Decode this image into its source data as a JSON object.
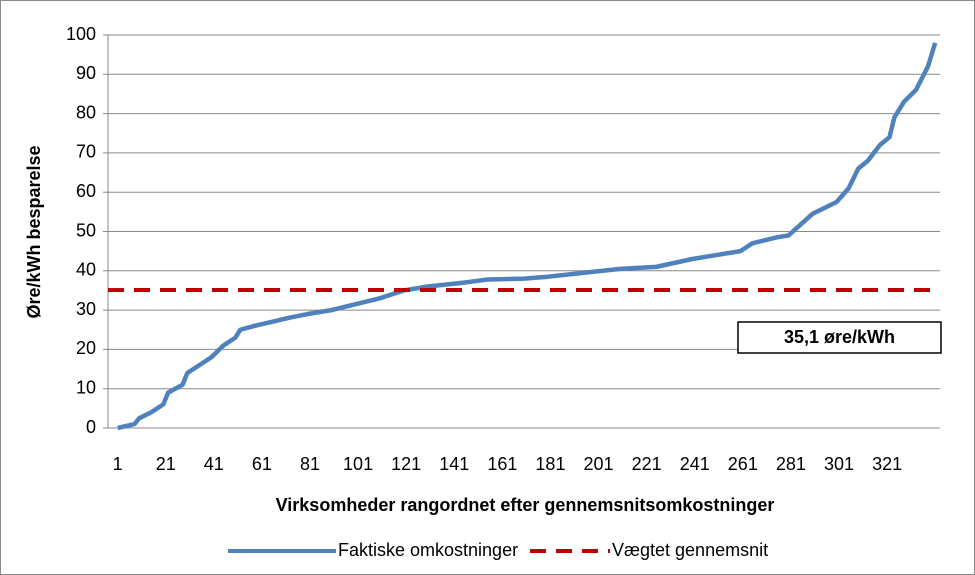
{
  "chart_data": {
    "type": "line",
    "xlabel": "Virksomheder rangordnet efter gennemsnitsomkostninger",
    "ylabel": "Øre/kWh besparelse",
    "annotation": "35,1 øre/kWh",
    "xlim": [
      -3,
      343
    ],
    "xticks": [
      1,
      21,
      41,
      61,
      81,
      101,
      121,
      141,
      161,
      181,
      201,
      221,
      241,
      261,
      281,
      301,
      321
    ],
    "ylim": [
      0,
      100
    ],
    "yticks": [
      0,
      10,
      20,
      30,
      40,
      50,
      60,
      70,
      80,
      90,
      100
    ],
    "grid": true,
    "legend": "bottom",
    "series": [
      {
        "name": "Faktiske omkostninger",
        "color": "#4f81bd",
        "x": [
          1,
          8,
          10,
          15,
          20,
          22,
          28,
          30,
          35,
          40,
          45,
          50,
          52,
          58,
          65,
          72,
          80,
          90,
          100,
          110,
          120,
          130,
          145,
          155,
          170,
          180,
          195,
          210,
          225,
          240,
          250,
          260,
          265,
          275,
          280,
          290,
          300,
          305,
          309,
          313,
          318,
          322,
          324,
          328,
          333,
          338,
          341
        ],
        "values": [
          0,
          1,
          2.5,
          4,
          6,
          9,
          11,
          14,
          16,
          18,
          21,
          23,
          25,
          26,
          27,
          28,
          29,
          30,
          31.5,
          33,
          35,
          36,
          37,
          37.8,
          38,
          38.5,
          39.5,
          40.5,
          41,
          43,
          44,
          45,
          47,
          48.5,
          49,
          54.5,
          57.5,
          61,
          66,
          68,
          72,
          74,
          79,
          83,
          86,
          92,
          98
        ]
      },
      {
        "name": "Vægtet gennemsnit",
        "color": "#c00000",
        "dash": true,
        "x": [
          -3,
          343
        ],
        "values": [
          35.1,
          35.1
        ]
      }
    ]
  }
}
